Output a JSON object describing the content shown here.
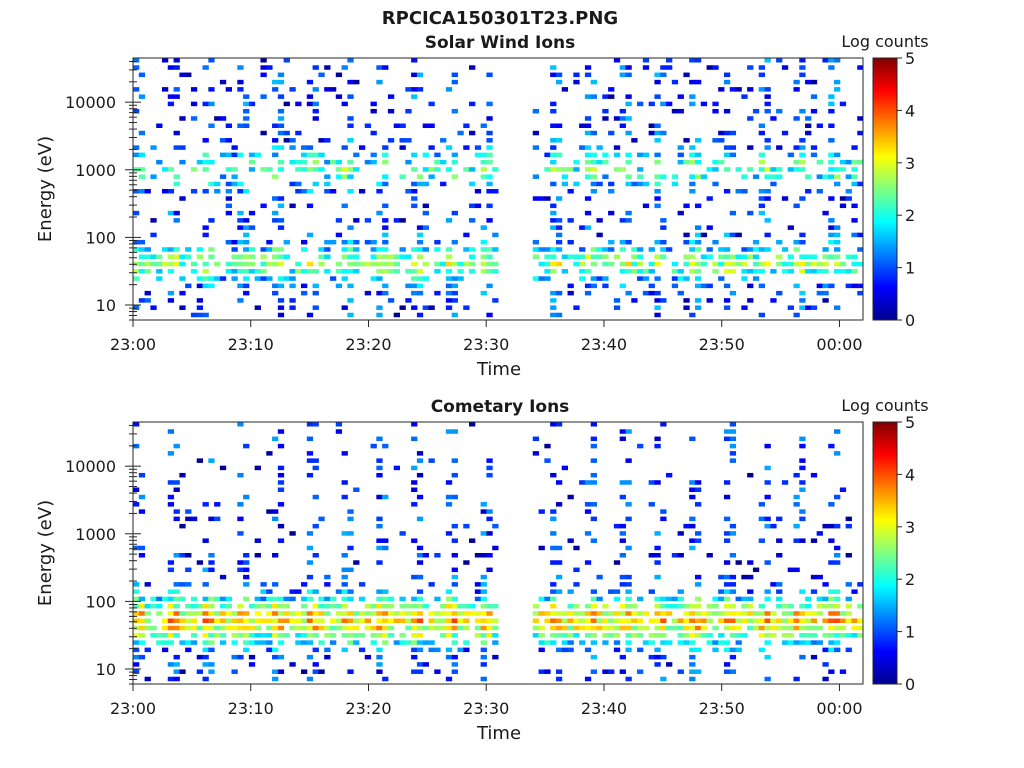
{
  "figure_title": "RPCICA150301T23.PNG",
  "chart_data": [
    {
      "type": "heatmap",
      "title": "Solar Wind Ions",
      "xlabel": "Time",
      "ylabel": "Energy (eV)",
      "x_ticks": [
        "23:00",
        "23:10",
        "23:20",
        "23:30",
        "23:40",
        "23:50",
        "00:00"
      ],
      "x_range": [
        "23:00",
        "00:02"
      ],
      "y_scale": "log",
      "y_ticks": [
        10,
        100,
        1000,
        10000
      ],
      "y_range": [
        6,
        45000
      ],
      "colorbar": {
        "label": "Log counts",
        "range": [
          0,
          5
        ],
        "ticks": [
          0,
          1,
          2,
          3,
          4,
          5
        ],
        "colormap": "jet"
      },
      "data_gap": [
        "23:31",
        "23:34"
      ],
      "intensity_profile": "sparse; peak log counts ~3 near 700-2000 eV and 30-60 eV"
    },
    {
      "type": "heatmap",
      "title": "Cometary Ions",
      "xlabel": "Time",
      "ylabel": "Energy (eV)",
      "x_ticks": [
        "23:00",
        "23:10",
        "23:20",
        "23:30",
        "23:40",
        "23:50",
        "00:00"
      ],
      "x_range": [
        "23:00",
        "00:02"
      ],
      "y_scale": "log",
      "y_ticks": [
        10,
        100,
        1000,
        10000
      ],
      "y_range": [
        6,
        45000
      ],
      "colorbar": {
        "label": "Log counts",
        "range": [
          0,
          5
        ],
        "ticks": [
          0,
          1,
          2,
          3,
          4,
          5
        ],
        "colormap": "jet"
      },
      "data_gap": [
        "23:31",
        "23:34"
      ],
      "intensity_profile": "dense at 20-300 eV with peak log counts ~3.3 near 30-50 eV; sparse above 1000 eV"
    }
  ]
}
